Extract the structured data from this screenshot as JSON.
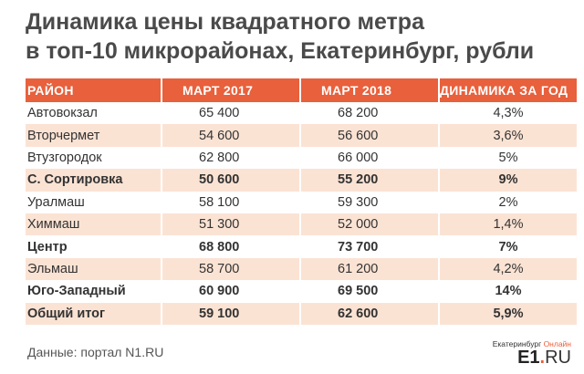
{
  "title_line1": "Динамика цены квадратного метра",
  "title_line2": "в топ-10 микрорайонах, Екатеринбург, рубли",
  "source": "Данные: портал N1.RU",
  "logo": {
    "top": "Екатеринбург",
    "top_accent": "Онлайн",
    "main": "E1",
    "dot": ".",
    "suffix": "RU"
  },
  "colors": {
    "header": "#e8603c",
    "stripe": "#fbe3d4"
  },
  "chart_data": {
    "type": "table",
    "columns": [
      "РАЙОН",
      "МАРТ 2017",
      "МАРТ 2018",
      "ДИНАМИКА ЗА ГОД"
    ],
    "rows": [
      {
        "district": "Автовокзал",
        "march2017": "65 400",
        "march2018": "68 200",
        "change": "4,3%",
        "bold": false
      },
      {
        "district": "Вторчермет",
        "march2017": "54 600",
        "march2018": "56 600",
        "change": "3,6%",
        "bold": false
      },
      {
        "district": "Втузгородок",
        "march2017": "62 800",
        "march2018": "66 000",
        "change": "5%",
        "bold": false
      },
      {
        "district": "С. Сортировка",
        "march2017": "50 600",
        "march2018": "55 200",
        "change": "9%",
        "bold": true
      },
      {
        "district": "Уралмаш",
        "march2017": "58 100",
        "march2018": "59 300",
        "change": "2%",
        "bold": false
      },
      {
        "district": "Химмаш",
        "march2017": "51 300",
        "march2018": "52 000",
        "change": "1,4%",
        "bold": false
      },
      {
        "district": "Центр",
        "march2017": "68 800",
        "march2018": "73 700",
        "change": "7%",
        "bold": true
      },
      {
        "district": "Эльмаш",
        "march2017": "58 700",
        "march2018": "61 200",
        "change": "4,2%",
        "bold": false
      },
      {
        "district": "Юго-Западный",
        "march2017": "60 900",
        "march2018": "69 500",
        "change": "14%",
        "bold": true
      },
      {
        "district": "Общий итог",
        "march2017": "59 100",
        "march2018": "62 600",
        "change": "5,9%",
        "bold": true
      }
    ]
  }
}
